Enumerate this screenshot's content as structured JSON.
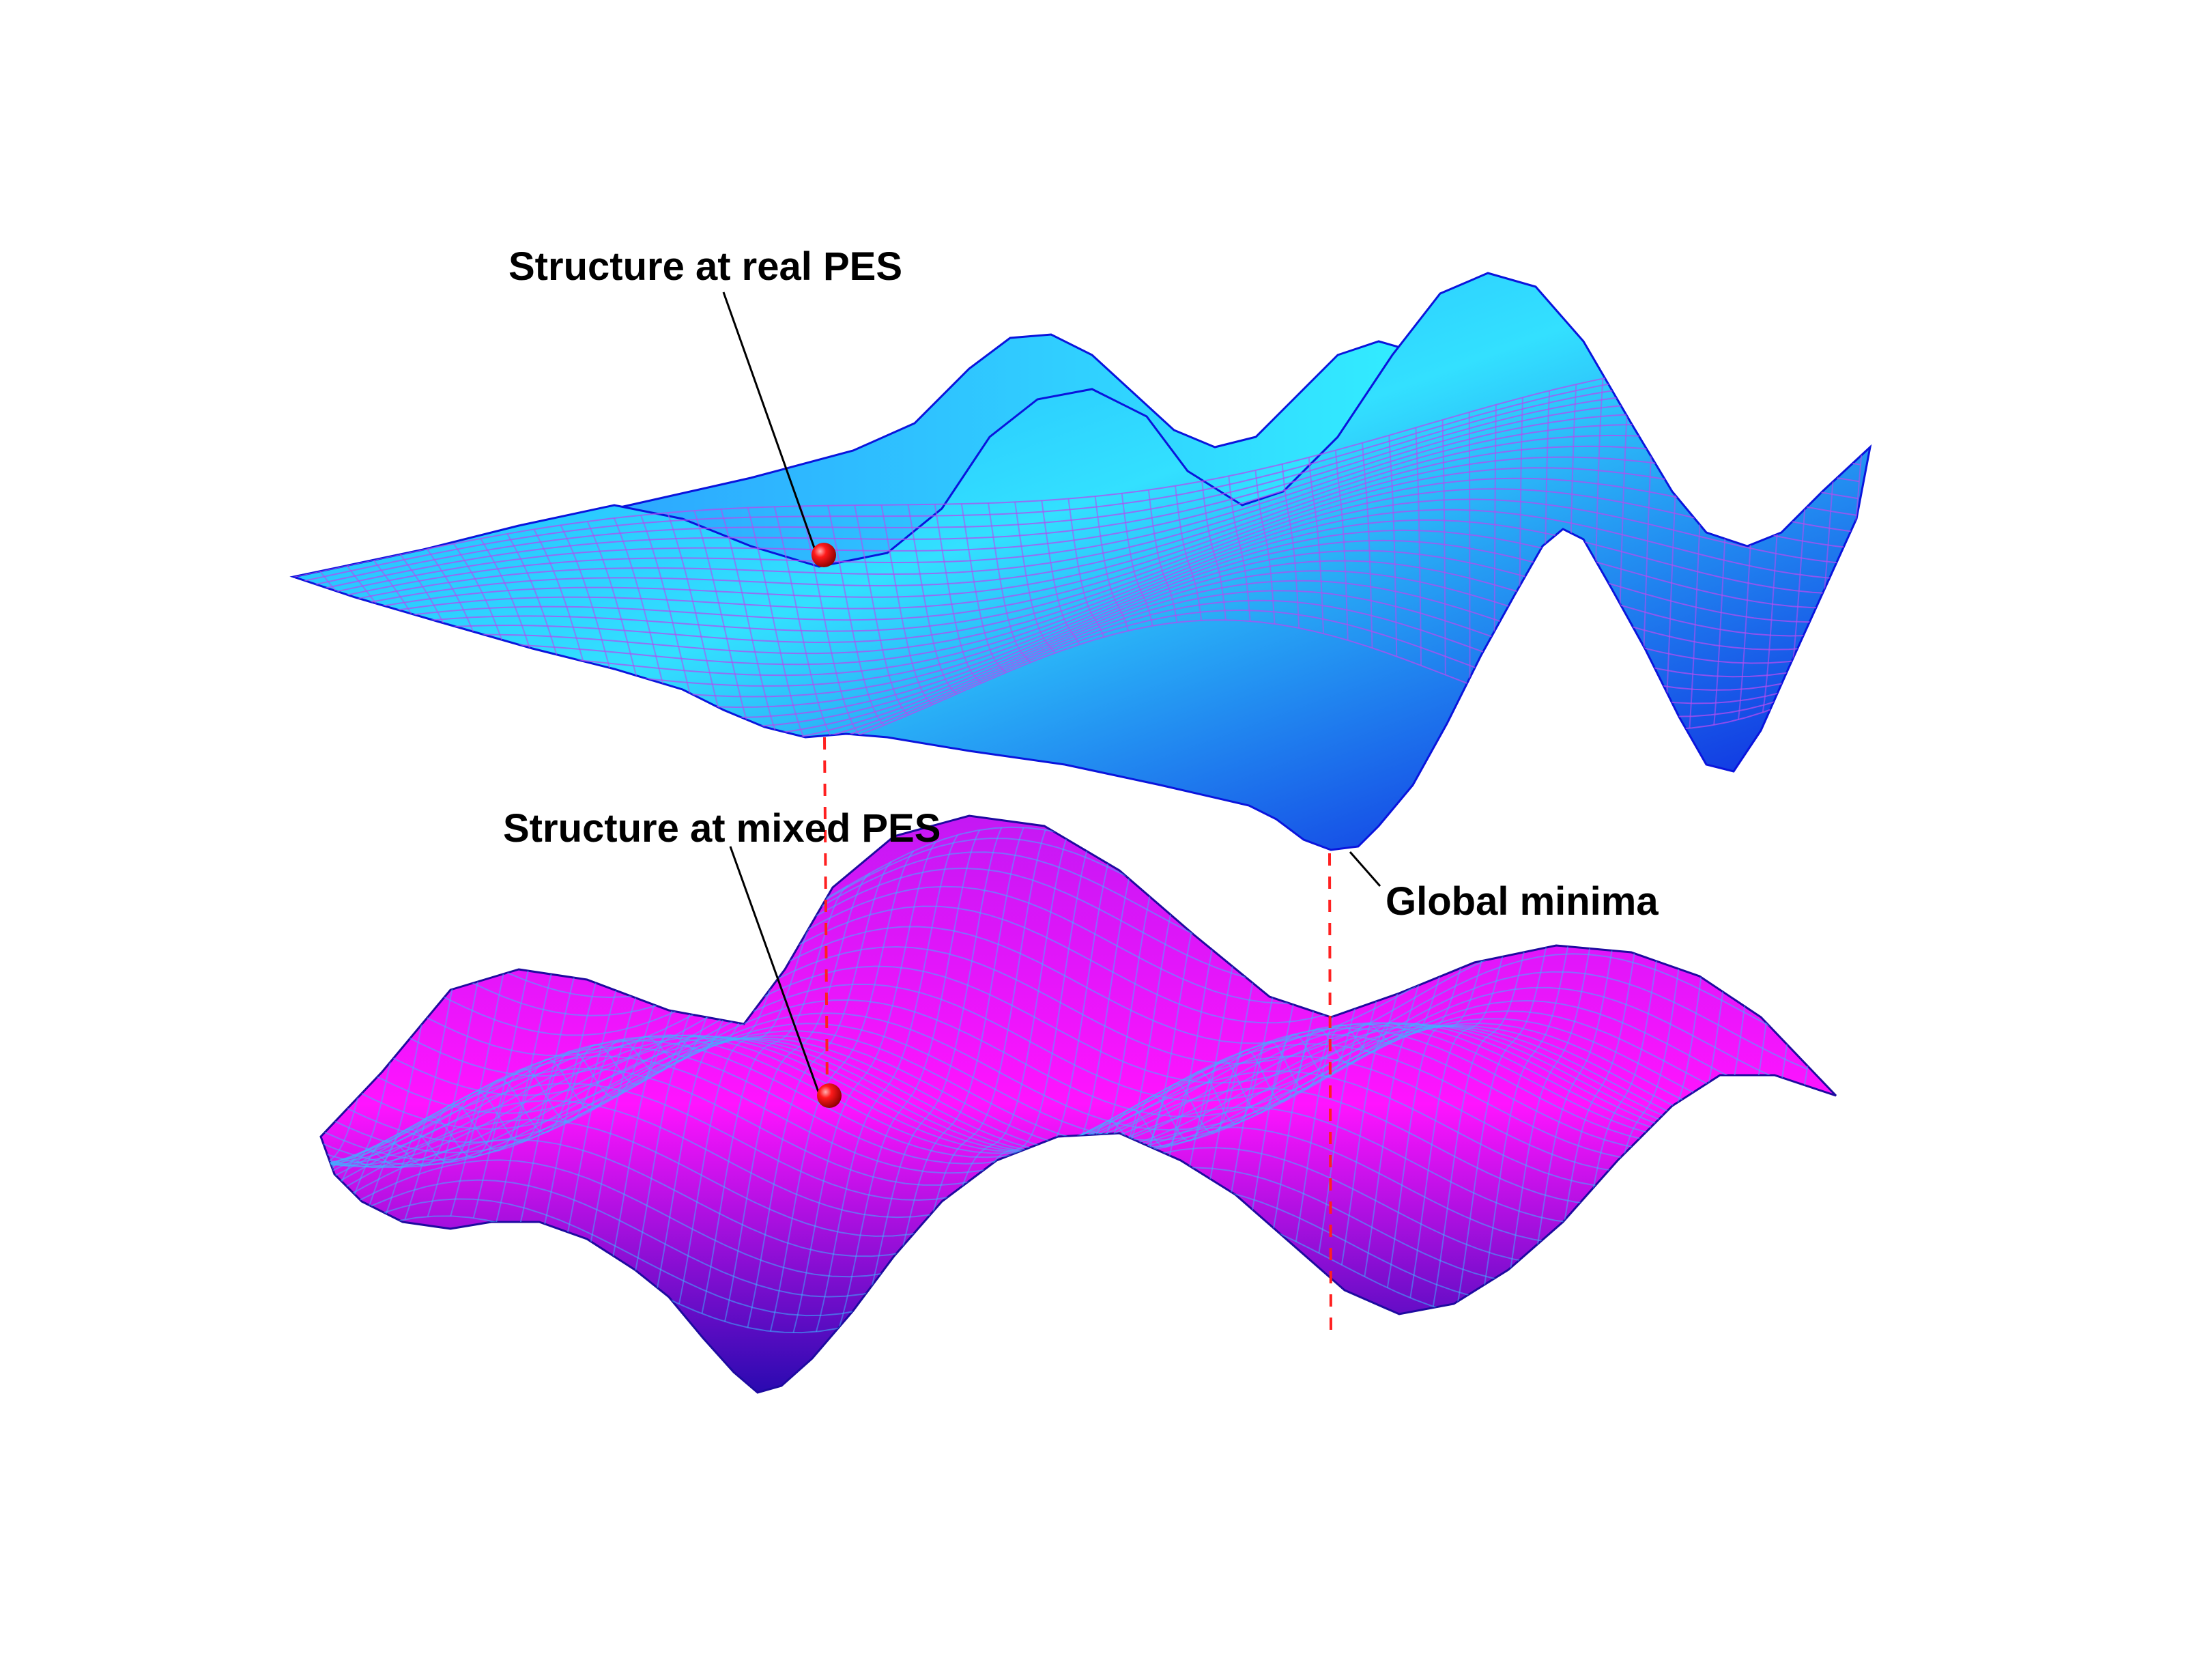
{
  "labels": {
    "real_structure": "Structure at real PES",
    "mixed_structure": "Structure at mixed PES",
    "global_minimum": "Global minima"
  },
  "colors": {
    "real_surface_light": "#33f0ff",
    "real_surface_mid": "#1aa0ff",
    "real_surface_dark": "#0a14dc",
    "real_mesh": "#b44cf0",
    "mixed_surface_light": "#ff14ff",
    "mixed_surface_mid": "#b414f0",
    "mixed_surface_dark": "#1e0aa0",
    "mixed_mesh": "#3cb4ff",
    "guide_line": "#ff0000",
    "structure_marker": "#ff0000",
    "label_text": "#000000"
  }
}
